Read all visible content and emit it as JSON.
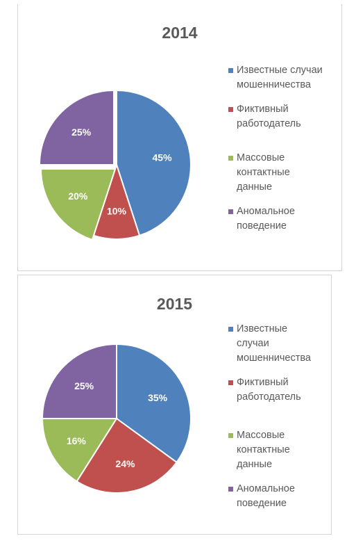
{
  "chart_data": [
    {
      "type": "pie",
      "title": "2014",
      "categories": [
        "Известные случаи мошенничества",
        "Фиктивный работодатель",
        "Массовые контактные данные",
        "Аномальное поведение"
      ],
      "values": [
        45,
        10,
        20,
        25
      ],
      "labels": [
        "45%",
        "10%",
        "20%",
        "25%"
      ],
      "colors": [
        "#4f81bd",
        "#c0504d",
        "#9bbb59",
        "#8064a2"
      ],
      "legend": {
        "position": "right",
        "entries": [
          [
            "Известные случаи",
            "мошенничества"
          ],
          [
            "Фиктивный",
            "работодатель"
          ],
          [
            "Массовые",
            "контактные",
            "данные"
          ],
          [
            "Аномальное",
            "поведение"
          ]
        ]
      }
    },
    {
      "type": "pie",
      "title": "2015",
      "categories": [
        "Известные случаи мошенничества",
        "Фиктивный работодатель",
        "Массовые контактные данные",
        "Аномальное поведение"
      ],
      "values": [
        35,
        24,
        16,
        25
      ],
      "labels": [
        "35%",
        "24%",
        "16%",
        "25%"
      ],
      "colors": [
        "#4f81bd",
        "#c0504d",
        "#9bbb59",
        "#8064a2"
      ],
      "legend": {
        "position": "right",
        "entries": [
          [
            "Известные",
            "случаи",
            "мошенничества"
          ],
          [
            "Фиктивный",
            "работодатель"
          ],
          [
            "Массовые",
            "контактные",
            "данные"
          ],
          [
            "Аномальное",
            "поведение"
          ]
        ]
      }
    }
  ]
}
